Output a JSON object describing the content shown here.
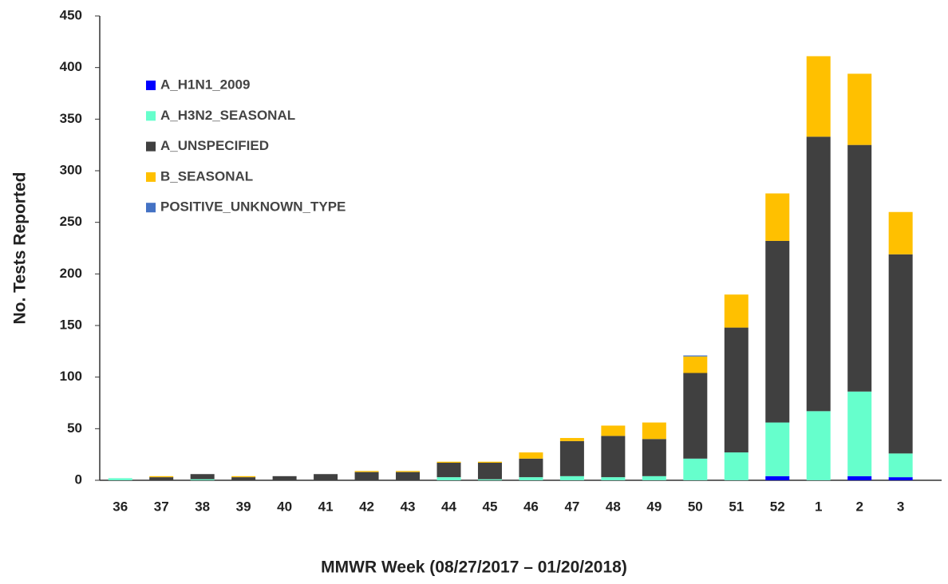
{
  "chart_data": {
    "type": "stacked_bar",
    "x_label": "MMWR Week (08/27/2017 – 01/20/2018)",
    "y_label": "No. Tests Reported",
    "categories": [
      "36",
      "37",
      "38",
      "39",
      "40",
      "41",
      "42",
      "43",
      "44",
      "45",
      "46",
      "47",
      "48",
      "49",
      "50",
      "51",
      "52",
      "1",
      "2",
      "3"
    ],
    "series": [
      {
        "name": "A_H1N1_2009",
        "color": "#0000ff",
        "values": [
          0,
          0,
          0,
          0,
          0,
          0,
          0,
          0,
          0,
          0,
          0,
          0,
          0,
          0,
          0,
          0,
          4,
          0,
          4,
          3
        ]
      },
      {
        "name": "A_H3N2_SEASONAL",
        "color": "#66ffcc",
        "values": [
          2,
          0,
          1,
          0,
          0,
          0,
          0,
          0,
          3,
          1,
          3,
          4,
          3,
          4,
          21,
          27,
          52,
          67,
          82,
          23
        ]
      },
      {
        "name": "A_UNSPECIFIED",
        "color": "#404040",
        "values": [
          0,
          3,
          5,
          3,
          4,
          6,
          8,
          8,
          14,
          16,
          18,
          34,
          40,
          36,
          83,
          121,
          176,
          266,
          239,
          193
        ]
      },
      {
        "name": "B_SEASONAL",
        "color": "#ffc000",
        "values": [
          0,
          1,
          0,
          1,
          0,
          0,
          1,
          1,
          1,
          1,
          6,
          3,
          10,
          16,
          16,
          32,
          46,
          78,
          69,
          41
        ]
      },
      {
        "name": "POSITIVE_UNKNOWN_TYPE",
        "color": "#4472c4",
        "values": [
          0,
          0,
          0,
          0,
          0,
          0,
          0,
          0,
          0,
          0,
          0,
          0,
          0,
          0,
          1,
          0,
          0,
          0,
          0,
          0
        ]
      }
    ],
    "ylim": [
      0,
      450
    ],
    "yticks": [
      0,
      50,
      100,
      150,
      200,
      250,
      300,
      350,
      400,
      450
    ]
  }
}
